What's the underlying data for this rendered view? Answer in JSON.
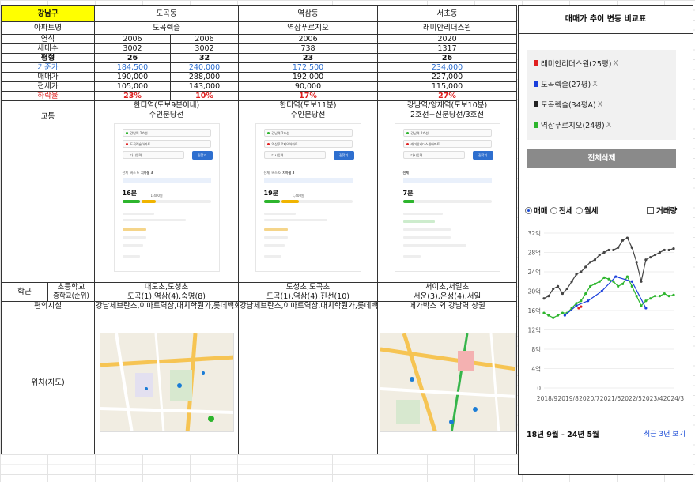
{
  "table": {
    "region": "강남구",
    "apt_label": "아파트명",
    "dongs": [
      "도곡동",
      "역삼동",
      "서초동"
    ],
    "apts": [
      "도곡렉슬",
      "역삼푸르지오",
      "래미안리더스원"
    ],
    "rows": {
      "built": {
        "label": "연식",
        "vals": [
          "2006",
          "2006",
          "2006",
          "2020"
        ]
      },
      "units": {
        "label": "세대수",
        "vals": [
          "3002",
          "3002",
          "738",
          "1317"
        ]
      },
      "pyeong": {
        "label": "평형",
        "vals": [
          "26",
          "32",
          "23",
          "26"
        ]
      },
      "base": {
        "label": "기준가",
        "vals": [
          "184,500",
          "240,000",
          "172,500",
          "234,000"
        ]
      },
      "sale": {
        "label": "매매가",
        "vals": [
          "190,000",
          "288,000",
          "192,000",
          "227,000"
        ]
      },
      "jeonse": {
        "label": "전세가",
        "vals": [
          "105,000",
          "143,000",
          "90,000",
          "115,000"
        ]
      },
      "drop": {
        "label": "하락율",
        "vals": [
          "23%",
          "10%",
          "17%",
          "27%"
        ]
      }
    },
    "transport": {
      "label": "교통",
      "line1": [
        "한티역(도보9분이내)",
        "한티역(도보11분)",
        "강남역/양재역(도보10분)"
      ],
      "line2": [
        "수인분당선",
        "수인분당선",
        "2호선+신분당선/3호선"
      ]
    },
    "phone": {
      "from": "강남역 2호선",
      "to": [
        "도곡렉슬아파트",
        "역삼푸르지오아파트",
        "래미안리더스원아파트"
      ],
      "via": "다시입력",
      "search": "길찾기",
      "tabs": [
        "전체",
        "버스 6",
        "지하철 3"
      ],
      "time": [
        "16분",
        "19분",
        "7분"
      ],
      "fare": "1,400원"
    },
    "school": {
      "label": "학군",
      "elem_label": "초등학교",
      "mid_label": "중학교(순위)",
      "elem": [
        "대도초,도성초",
        "도성초,도곡초",
        "서이초,서일초"
      ],
      "mid": [
        "도곡(1),역삼(4),숙명(8)",
        "도곡(1),역삼(4),진선(10)",
        "서운(3),은성(4),서일"
      ]
    },
    "amenity": {
      "label": "편의시설",
      "vals": [
        "강남세브란스,이마트역삼,대치학원가,롯데백화점",
        "강남세브란스,이마트역삼,대치학원가,롯데백화점",
        "메가박스 외 강남역 상권"
      ]
    },
    "location": {
      "label": "위치(지도)"
    }
  },
  "panel": {
    "title": "매매가 추이 변동 비교표",
    "legend": [
      {
        "label": "래미안리더스원(25평)",
        "color": "#e02020"
      },
      {
        "label": "도곡렉슬(27평)",
        "color": "#1a3fdc"
      },
      {
        "label": "도곡렉슬(34평A)",
        "color": "#222222"
      },
      {
        "label": "역삼푸르지오(24평)",
        "color": "#2db52d"
      }
    ],
    "legend_close": "X",
    "delete_label": "전체삭제",
    "radios": [
      "매매",
      "전세",
      "월세"
    ],
    "checkbox": "거래량",
    "range_text": "18년 9월 - 24년 5월",
    "recent_link": "최근 3년 보기"
  },
  "chart_data": {
    "type": "line",
    "ylim": [
      0,
      32
    ],
    "yticks": [
      "0",
      "4억",
      "8억",
      "12억",
      "16억",
      "20억",
      "24억",
      "28억",
      "32억"
    ],
    "xticks": [
      "2018/9",
      "2019/8",
      "2020/7",
      "2021/6",
      "2022/5",
      "2023/4",
      "2024/3"
    ],
    "series": [
      {
        "name": "도곡렉슬(34평A)",
        "color": "#444444",
        "points": [
          [
            0,
            18.5
          ],
          [
            2,
            19
          ],
          [
            4,
            20.5
          ],
          [
            6,
            21
          ],
          [
            8,
            19.5
          ],
          [
            10,
            20.5
          ],
          [
            12,
            22
          ],
          [
            14,
            23.5
          ],
          [
            16,
            24
          ],
          [
            18,
            25
          ],
          [
            20,
            26
          ],
          [
            22,
            26.5
          ],
          [
            24,
            27.5
          ],
          [
            26,
            28
          ],
          [
            28,
            28.5
          ],
          [
            30,
            28.5
          ],
          [
            32,
            29
          ],
          [
            34,
            30.5
          ],
          [
            36,
            31
          ],
          [
            38,
            29
          ],
          [
            40,
            26
          ],
          [
            42,
            22
          ],
          [
            44,
            26.5
          ],
          [
            46,
            27
          ],
          [
            48,
            27.5
          ],
          [
            50,
            28
          ],
          [
            52,
            28.5
          ],
          [
            54,
            28.5
          ],
          [
            56,
            28.8
          ]
        ]
      },
      {
        "name": "역삼푸르지오(24평)",
        "color": "#2db52d",
        "points": [
          [
            0,
            15.5
          ],
          [
            2,
            15
          ],
          [
            4,
            14.5
          ],
          [
            6,
            15
          ],
          [
            8,
            15.5
          ],
          [
            10,
            15.5
          ],
          [
            12,
            16.5
          ],
          [
            14,
            17.5
          ],
          [
            16,
            18
          ],
          [
            18,
            19.5
          ],
          [
            20,
            21
          ],
          [
            22,
            21.5
          ],
          [
            24,
            22
          ],
          [
            26,
            22.8
          ],
          [
            28,
            22.5
          ],
          [
            30,
            22
          ],
          [
            32,
            21
          ],
          [
            34,
            21.5
          ],
          [
            36,
            23
          ],
          [
            38,
            21
          ],
          [
            40,
            19
          ],
          [
            42,
            17
          ],
          [
            44,
            18
          ],
          [
            46,
            18.5
          ],
          [
            48,
            19
          ],
          [
            50,
            19
          ],
          [
            52,
            19.5
          ],
          [
            54,
            19
          ],
          [
            56,
            19.2
          ]
        ]
      },
      {
        "name": "도곡렉슬(27평)",
        "color": "#1a3fdc",
        "points": [
          [
            9,
            15
          ],
          [
            14,
            17
          ],
          [
            19,
            18
          ],
          [
            25,
            20
          ],
          [
            31,
            23
          ],
          [
            38,
            22
          ],
          [
            44,
            16.5
          ]
        ]
      },
      {
        "name": "래미안리더스원(25평)",
        "color": "#e02020",
        "points": [
          [
            15,
            16.5
          ],
          [
            16,
            16.8
          ]
        ]
      }
    ]
  }
}
